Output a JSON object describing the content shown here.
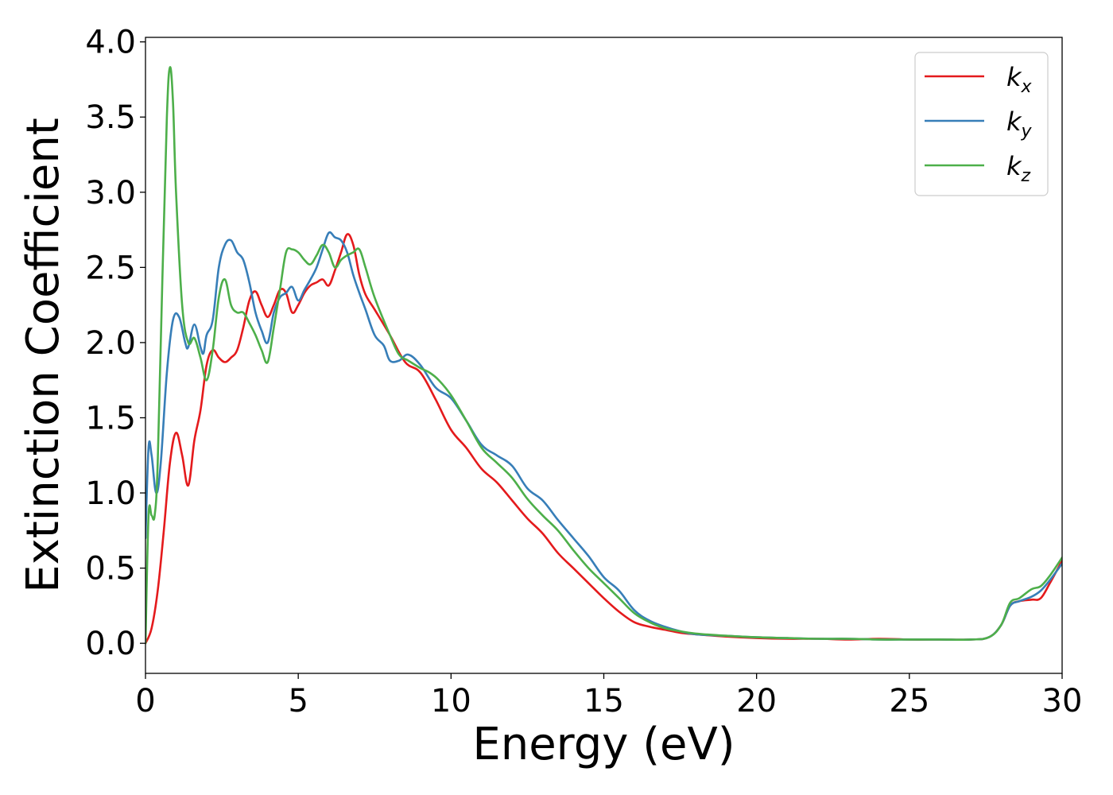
{
  "chart_data": {
    "type": "line",
    "title": "",
    "xlabel": "Energy (eV)",
    "ylabel": "Extinction Coefficient",
    "xlim": [
      0,
      30
    ],
    "ylim": [
      -0.2,
      4.03
    ],
    "xticks": [
      0,
      5,
      10,
      15,
      20,
      25,
      30
    ],
    "xtick_labels": [
      "0",
      "5",
      "10",
      "15",
      "20",
      "25",
      "30"
    ],
    "yticks": [
      0.0,
      0.5,
      1.0,
      1.5,
      2.0,
      2.5,
      3.0,
      3.5,
      4.0
    ],
    "ytick_labels": [
      "0.0",
      "0.5",
      "1.0",
      "1.5",
      "2.0",
      "2.5",
      "3.0",
      "3.5",
      "4.0"
    ],
    "grid": false,
    "legend_position": "top-right",
    "series": [
      {
        "name": "kx",
        "legend_main": "k",
        "legend_sub": "x",
        "color": "#e41a1c",
        "x": [
          0,
          0.2,
          0.4,
          0.6,
          0.8,
          1.0,
          1.2,
          1.4,
          1.6,
          1.8,
          2.0,
          2.2,
          2.4,
          2.6,
          2.8,
          3.0,
          3.2,
          3.4,
          3.6,
          3.8,
          4.0,
          4.2,
          4.4,
          4.6,
          4.8,
          5.0,
          5.2,
          5.4,
          5.6,
          5.8,
          6.0,
          6.2,
          6.4,
          6.6,
          6.8,
          7.0,
          7.2,
          7.5,
          8.0,
          8.5,
          9.0,
          9.5,
          10.0,
          10.5,
          11.0,
          11.5,
          12.0,
          12.5,
          13.0,
          13.5,
          14.0,
          14.5,
          15.0,
          15.5,
          16.0,
          16.5,
          17.0,
          17.5,
          18.0,
          19.0,
          20.0,
          21.0,
          22.0,
          23.0,
          24.0,
          25.0,
          26.0,
          27.0,
          27.6,
          28.0,
          28.3,
          28.6,
          29.0,
          29.3,
          29.6,
          30.0
        ],
        "y": [
          0.0,
          0.1,
          0.35,
          0.75,
          1.2,
          1.4,
          1.25,
          1.05,
          1.35,
          1.55,
          1.85,
          1.95,
          1.9,
          1.87,
          1.9,
          1.95,
          2.1,
          2.28,
          2.34,
          2.25,
          2.17,
          2.25,
          2.35,
          2.33,
          2.2,
          2.25,
          2.33,
          2.38,
          2.4,
          2.42,
          2.38,
          2.48,
          2.6,
          2.72,
          2.65,
          2.45,
          2.32,
          2.22,
          2.05,
          1.87,
          1.8,
          1.62,
          1.42,
          1.3,
          1.16,
          1.07,
          0.95,
          0.83,
          0.73,
          0.6,
          0.5,
          0.4,
          0.3,
          0.21,
          0.14,
          0.11,
          0.09,
          0.07,
          0.06,
          0.045,
          0.035,
          0.03,
          0.03,
          0.025,
          0.03,
          0.025,
          0.025,
          0.025,
          0.04,
          0.12,
          0.25,
          0.28,
          0.29,
          0.3,
          0.4,
          0.55
        ]
      },
      {
        "name": "ky",
        "legend_main": "k",
        "legend_sub": "y",
        "color": "#377eb8",
        "x": [
          0,
          0.1,
          0.2,
          0.35,
          0.5,
          0.7,
          0.9,
          1.1,
          1.3,
          1.4,
          1.6,
          1.8,
          1.9,
          2.0,
          2.2,
          2.4,
          2.6,
          2.8,
          3.0,
          3.2,
          3.4,
          3.6,
          3.8,
          4.0,
          4.2,
          4.4,
          4.6,
          4.8,
          5.0,
          5.2,
          5.4,
          5.6,
          5.8,
          6.0,
          6.2,
          6.4,
          6.6,
          6.8,
          7.0,
          7.2,
          7.5,
          7.8,
          8.0,
          8.3,
          8.6,
          9.0,
          9.5,
          10.0,
          10.5,
          11.0,
          11.5,
          12.0,
          12.5,
          13.0,
          13.5,
          14.0,
          14.5,
          15.0,
          15.5,
          16.0,
          16.5,
          17.0,
          17.5,
          18.0,
          19.0,
          20.0,
          21.0,
          22.0,
          23.0,
          24.0,
          25.0,
          26.0,
          27.0,
          27.6,
          28.0,
          28.3,
          28.6,
          29.0,
          29.3,
          29.6,
          30.0
        ],
        "y": [
          0.7,
          1.3,
          1.25,
          1.0,
          1.2,
          1.8,
          2.15,
          2.17,
          2.0,
          1.97,
          2.12,
          1.97,
          1.93,
          2.05,
          2.15,
          2.5,
          2.65,
          2.68,
          2.6,
          2.55,
          2.4,
          2.2,
          2.08,
          2.0,
          2.2,
          2.3,
          2.33,
          2.37,
          2.28,
          2.35,
          2.42,
          2.5,
          2.62,
          2.73,
          2.7,
          2.68,
          2.6,
          2.45,
          2.33,
          2.22,
          2.05,
          1.98,
          1.88,
          1.88,
          1.92,
          1.85,
          1.7,
          1.63,
          1.48,
          1.32,
          1.25,
          1.18,
          1.03,
          0.95,
          0.82,
          0.7,
          0.58,
          0.44,
          0.35,
          0.22,
          0.15,
          0.11,
          0.08,
          0.06,
          0.05,
          0.04,
          0.035,
          0.03,
          0.03,
          0.025,
          0.025,
          0.025,
          0.025,
          0.04,
          0.12,
          0.25,
          0.28,
          0.31,
          0.35,
          0.42,
          0.53
        ]
      },
      {
        "name": "kz",
        "legend_main": "k",
        "legend_sub": "z",
        "color": "#4daf4a",
        "x": [
          0,
          0.1,
          0.2,
          0.3,
          0.4,
          0.55,
          0.7,
          0.8,
          0.9,
          1.0,
          1.2,
          1.4,
          1.6,
          1.8,
          2.0,
          2.2,
          2.4,
          2.6,
          2.8,
          3.0,
          3.2,
          3.4,
          3.6,
          3.8,
          4.0,
          4.2,
          4.4,
          4.6,
          4.8,
          5.0,
          5.2,
          5.4,
          5.6,
          5.8,
          6.0,
          6.2,
          6.4,
          6.6,
          6.8,
          7.0,
          7.2,
          7.5,
          8.0,
          8.3,
          8.6,
          9.0,
          9.3,
          9.6,
          10.0,
          10.5,
          11.0,
          11.5,
          12.0,
          12.5,
          13.0,
          13.5,
          14.0,
          14.5,
          15.0,
          15.5,
          16.0,
          16.5,
          17.0,
          17.5,
          18.0,
          19.0,
          20.0,
          21.0,
          22.0,
          23.0,
          24.0,
          25.0,
          26.0,
          27.0,
          27.6,
          28.0,
          28.3,
          28.6,
          29.0,
          29.3,
          29.6,
          30.0
        ],
        "y": [
          0.0,
          0.85,
          0.85,
          0.85,
          1.2,
          2.4,
          3.5,
          3.83,
          3.6,
          3.0,
          2.25,
          2.0,
          2.03,
          1.9,
          1.75,
          1.95,
          2.3,
          2.42,
          2.25,
          2.2,
          2.2,
          2.13,
          2.05,
          1.95,
          1.87,
          2.1,
          2.35,
          2.6,
          2.62,
          2.6,
          2.55,
          2.52,
          2.58,
          2.65,
          2.6,
          2.5,
          2.55,
          2.58,
          2.6,
          2.62,
          2.5,
          2.3,
          2.05,
          1.92,
          1.88,
          1.83,
          1.8,
          1.75,
          1.65,
          1.48,
          1.3,
          1.2,
          1.1,
          0.96,
          0.85,
          0.75,
          0.62,
          0.5,
          0.4,
          0.3,
          0.2,
          0.14,
          0.1,
          0.08,
          0.065,
          0.05,
          0.04,
          0.035,
          0.03,
          0.03,
          0.025,
          0.025,
          0.025,
          0.025,
          0.04,
          0.12,
          0.27,
          0.3,
          0.36,
          0.38,
          0.45,
          0.57
        ]
      }
    ]
  }
}
